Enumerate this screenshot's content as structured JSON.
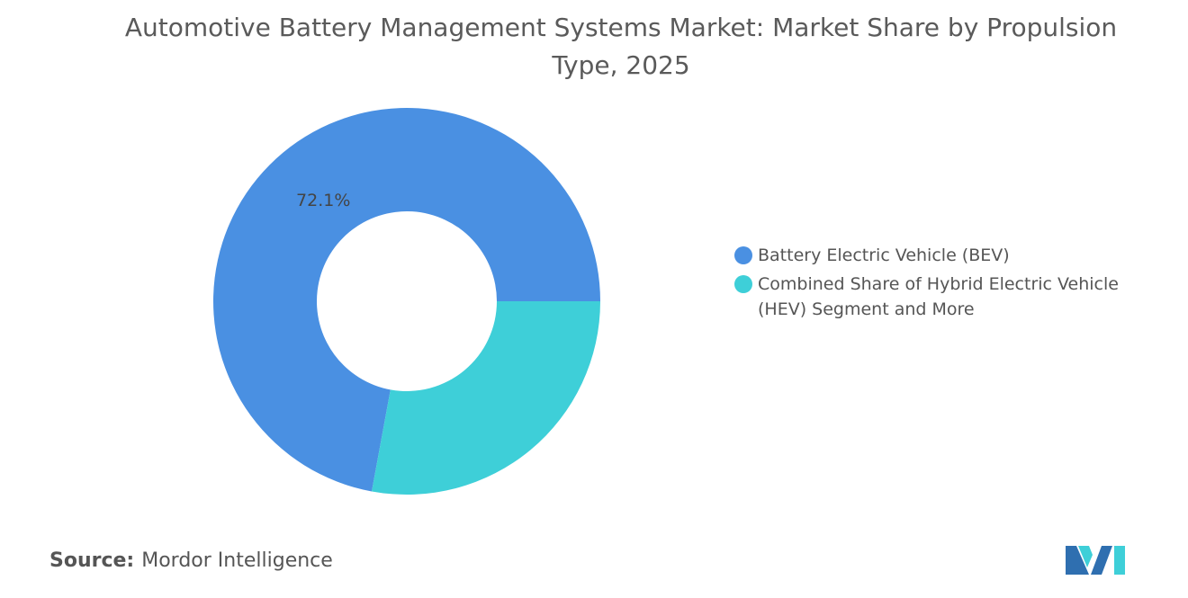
{
  "chart_data": {
    "type": "donut",
    "title": "Automotive Battery Management Systems Market: Market Share by Propulsion Type, 2025",
    "categories": [
      "Battery Electric Vehicle (BEV)",
      "Combined Share of Hybrid Electric Vehicle (HEV) Segment and More"
    ],
    "values": [
      72.1,
      27.9
    ],
    "value_labels": [
      "72.1%",
      null
    ],
    "colors": [
      "#4a90e2",
      "#3ecfd8"
    ],
    "legend": "right"
  },
  "source": {
    "label": "Source:",
    "text": "Mordor Intelligence"
  }
}
